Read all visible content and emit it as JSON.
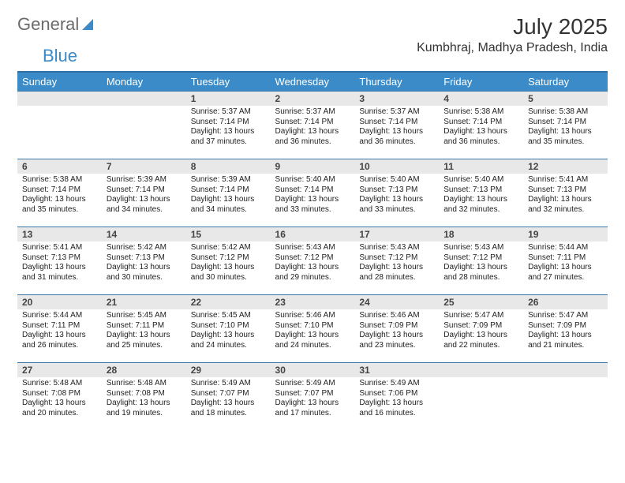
{
  "brand": {
    "part1": "General",
    "part2": "Blue"
  },
  "title": "July 2025",
  "location": "Kumbhraj, Madhya Pradesh, India",
  "colors": {
    "header_bg": "#3b8bc9",
    "header_text": "#ffffff",
    "row_border": "#3b77a7",
    "daynum_bg": "#e8e8e8",
    "body_text": "#222222",
    "brand_gray": "#6b6b6b",
    "brand_blue": "#3b8bc9"
  },
  "day_names": [
    "Sunday",
    "Monday",
    "Tuesday",
    "Wednesday",
    "Thursday",
    "Friday",
    "Saturday"
  ],
  "weeks": [
    [
      null,
      null,
      {
        "n": "1",
        "sunrise": "5:37 AM",
        "sunset": "7:14 PM",
        "daylight": "13 hours and 37 minutes."
      },
      {
        "n": "2",
        "sunrise": "5:37 AM",
        "sunset": "7:14 PM",
        "daylight": "13 hours and 36 minutes."
      },
      {
        "n": "3",
        "sunrise": "5:37 AM",
        "sunset": "7:14 PM",
        "daylight": "13 hours and 36 minutes."
      },
      {
        "n": "4",
        "sunrise": "5:38 AM",
        "sunset": "7:14 PM",
        "daylight": "13 hours and 36 minutes."
      },
      {
        "n": "5",
        "sunrise": "5:38 AM",
        "sunset": "7:14 PM",
        "daylight": "13 hours and 35 minutes."
      }
    ],
    [
      {
        "n": "6",
        "sunrise": "5:38 AM",
        "sunset": "7:14 PM",
        "daylight": "13 hours and 35 minutes."
      },
      {
        "n": "7",
        "sunrise": "5:39 AM",
        "sunset": "7:14 PM",
        "daylight": "13 hours and 34 minutes."
      },
      {
        "n": "8",
        "sunrise": "5:39 AM",
        "sunset": "7:14 PM",
        "daylight": "13 hours and 34 minutes."
      },
      {
        "n": "9",
        "sunrise": "5:40 AM",
        "sunset": "7:14 PM",
        "daylight": "13 hours and 33 minutes."
      },
      {
        "n": "10",
        "sunrise": "5:40 AM",
        "sunset": "7:13 PM",
        "daylight": "13 hours and 33 minutes."
      },
      {
        "n": "11",
        "sunrise": "5:40 AM",
        "sunset": "7:13 PM",
        "daylight": "13 hours and 32 minutes."
      },
      {
        "n": "12",
        "sunrise": "5:41 AM",
        "sunset": "7:13 PM",
        "daylight": "13 hours and 32 minutes."
      }
    ],
    [
      {
        "n": "13",
        "sunrise": "5:41 AM",
        "sunset": "7:13 PM",
        "daylight": "13 hours and 31 minutes."
      },
      {
        "n": "14",
        "sunrise": "5:42 AM",
        "sunset": "7:13 PM",
        "daylight": "13 hours and 30 minutes."
      },
      {
        "n": "15",
        "sunrise": "5:42 AM",
        "sunset": "7:12 PM",
        "daylight": "13 hours and 30 minutes."
      },
      {
        "n": "16",
        "sunrise": "5:43 AM",
        "sunset": "7:12 PM",
        "daylight": "13 hours and 29 minutes."
      },
      {
        "n": "17",
        "sunrise": "5:43 AM",
        "sunset": "7:12 PM",
        "daylight": "13 hours and 28 minutes."
      },
      {
        "n": "18",
        "sunrise": "5:43 AM",
        "sunset": "7:12 PM",
        "daylight": "13 hours and 28 minutes."
      },
      {
        "n": "19",
        "sunrise": "5:44 AM",
        "sunset": "7:11 PM",
        "daylight": "13 hours and 27 minutes."
      }
    ],
    [
      {
        "n": "20",
        "sunrise": "5:44 AM",
        "sunset": "7:11 PM",
        "daylight": "13 hours and 26 minutes."
      },
      {
        "n": "21",
        "sunrise": "5:45 AM",
        "sunset": "7:11 PM",
        "daylight": "13 hours and 25 minutes."
      },
      {
        "n": "22",
        "sunrise": "5:45 AM",
        "sunset": "7:10 PM",
        "daylight": "13 hours and 24 minutes."
      },
      {
        "n": "23",
        "sunrise": "5:46 AM",
        "sunset": "7:10 PM",
        "daylight": "13 hours and 24 minutes."
      },
      {
        "n": "24",
        "sunrise": "5:46 AM",
        "sunset": "7:09 PM",
        "daylight": "13 hours and 23 minutes."
      },
      {
        "n": "25",
        "sunrise": "5:47 AM",
        "sunset": "7:09 PM",
        "daylight": "13 hours and 22 minutes."
      },
      {
        "n": "26",
        "sunrise": "5:47 AM",
        "sunset": "7:09 PM",
        "daylight": "13 hours and 21 minutes."
      }
    ],
    [
      {
        "n": "27",
        "sunrise": "5:48 AM",
        "sunset": "7:08 PM",
        "daylight": "13 hours and 20 minutes."
      },
      {
        "n": "28",
        "sunrise": "5:48 AM",
        "sunset": "7:08 PM",
        "daylight": "13 hours and 19 minutes."
      },
      {
        "n": "29",
        "sunrise": "5:49 AM",
        "sunset": "7:07 PM",
        "daylight": "13 hours and 18 minutes."
      },
      {
        "n": "30",
        "sunrise": "5:49 AM",
        "sunset": "7:07 PM",
        "daylight": "13 hours and 17 minutes."
      },
      {
        "n": "31",
        "sunrise": "5:49 AM",
        "sunset": "7:06 PM",
        "daylight": "13 hours and 16 minutes."
      },
      null,
      null
    ]
  ],
  "labels": {
    "sunrise": "Sunrise:",
    "sunset": "Sunset:",
    "daylight": "Daylight:"
  }
}
